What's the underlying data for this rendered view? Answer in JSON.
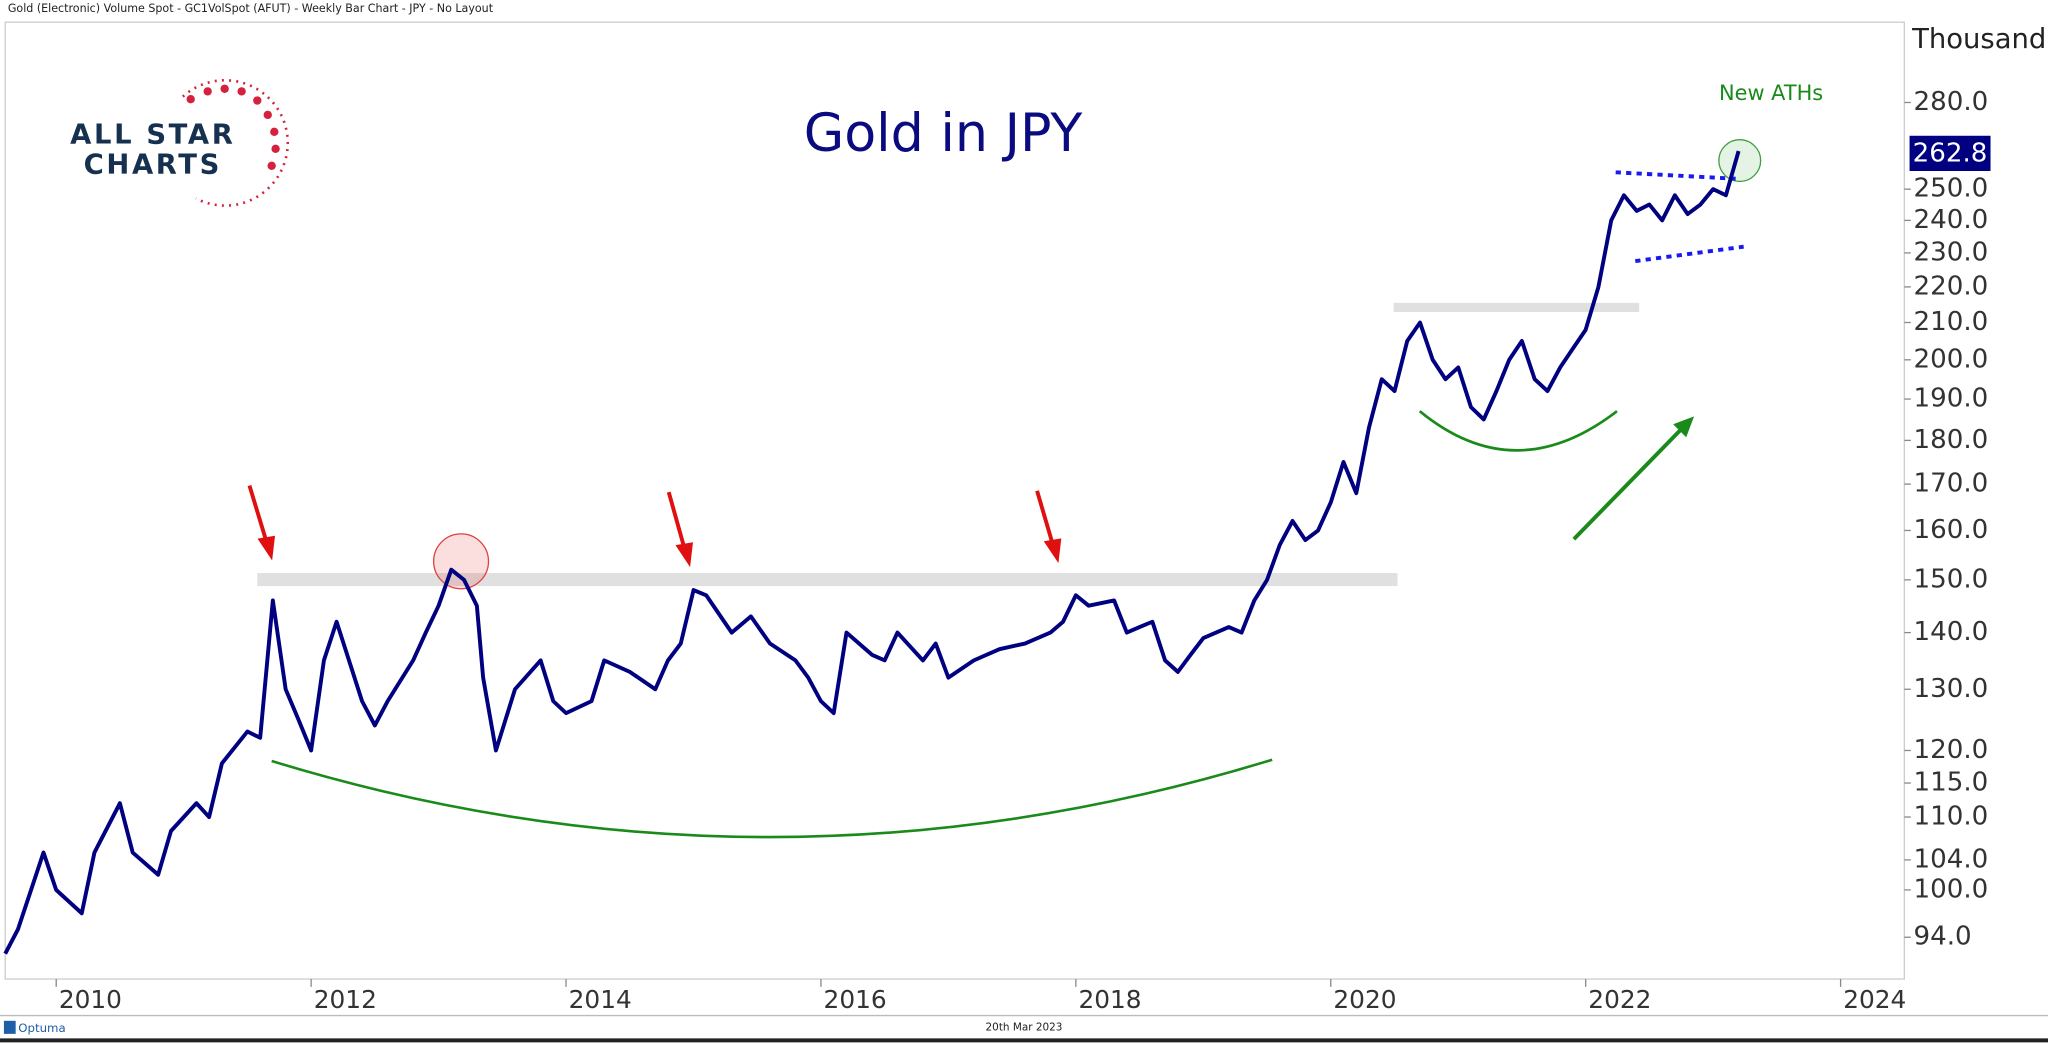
{
  "chart_data": {
    "type": "line",
    "header": "Gold (Electronic) Volume Spot - GC1VolSpot (AFUT) - Weekly Bar Chart - JPY - No Layout",
    "title": "Gold in JPY",
    "logo": [
      "ALL STAR",
      "CHARTS"
    ],
    "annotation": "New ATHs",
    "y_axis_label": "Thousand",
    "date": "20th Mar 2023",
    "brand": "Optuma",
    "log_y": true,
    "color": "#000080",
    "xlim": [
      2009.6,
      2024.5
    ],
    "xticks": [
      2010,
      2012,
      2014,
      2016,
      2018,
      2020,
      2022,
      2024
    ],
    "ylim": [
      89,
      311
    ],
    "yticks": [
      {
        "value": 94,
        "label": "94.0"
      },
      {
        "value": 100,
        "label": "100.0"
      },
      {
        "value": 104,
        "label": "104.0"
      },
      {
        "value": 110,
        "label": "110.0"
      },
      {
        "value": 115,
        "label": "115.0"
      },
      {
        "value": 120,
        "label": "120.0"
      },
      {
        "value": 130,
        "label": "130.0"
      },
      {
        "value": 140,
        "label": "140.0"
      },
      {
        "value": 150,
        "label": "150.0"
      },
      {
        "value": 160,
        "label": "160.0"
      },
      {
        "value": 170,
        "label": "170.0"
      },
      {
        "value": 180,
        "label": "180.0"
      },
      {
        "value": 190,
        "label": "190.0"
      },
      {
        "value": 200,
        "label": "200.0"
      },
      {
        "value": 210,
        "label": "210.0"
      },
      {
        "value": 220,
        "label": "220.0"
      },
      {
        "value": 230,
        "label": "230.0"
      },
      {
        "value": 240,
        "label": "240.0"
      },
      {
        "value": 250,
        "label": "250.0"
      },
      {
        "value": 280,
        "label": "280.0"
      }
    ],
    "x": [
      2009.6,
      2009.7,
      2009.9,
      2010.0,
      2010.2,
      2010.3,
      2010.5,
      2010.6,
      2010.8,
      2010.9,
      2011.1,
      2011.2,
      2011.3,
      2011.5,
      2011.6,
      2011.7,
      2011.8,
      2011.9,
      2012.0,
      2012.1,
      2012.2,
      2012.4,
      2012.5,
      2012.6,
      2012.8,
      2012.9,
      2013.0,
      2013.1,
      2013.2,
      2013.3,
      2013.35,
      2013.45,
      2013.6,
      2013.8,
      2013.9,
      2014.0,
      2014.2,
      2014.3,
      2014.5,
      2014.7,
      2014.8,
      2014.9,
      2015.0,
      2015.1,
      2015.3,
      2015.45,
      2015.6,
      2015.8,
      2015.9,
      2016.0,
      2016.1,
      2016.2,
      2016.4,
      2016.5,
      2016.6,
      2016.8,
      2016.9,
      2017.0,
      2017.2,
      2017.4,
      2017.6,
      2017.8,
      2017.9,
      2018.0,
      2018.1,
      2018.3,
      2018.4,
      2018.5,
      2018.6,
      2018.7,
      2018.8,
      2018.9,
      2019.0,
      2019.2,
      2019.3,
      2019.4,
      2019.5,
      2019.6,
      2019.7,
      2019.8,
      2019.9,
      2020.0,
      2020.1,
      2020.2,
      2020.3,
      2020.4,
      2020.5,
      2020.6,
      2020.7,
      2020.8,
      2020.9,
      2021.0,
      2021.1,
      2021.2,
      2021.3,
      2021.4,
      2021.5,
      2021.6,
      2021.7,
      2021.8,
      2021.9,
      2022.0,
      2022.1,
      2022.2,
      2022.3,
      2022.4,
      2022.5,
      2022.6,
      2022.7,
      2022.8,
      2022.9,
      2023.0,
      2023.1,
      2023.2
    ],
    "values": [
      92,
      95,
      105,
      100,
      97,
      105,
      112,
      105,
      102,
      108,
      112,
      110,
      118,
      123,
      122,
      146,
      130,
      125,
      120,
      135,
      142,
      128,
      124,
      128,
      135,
      140,
      145,
      152,
      150,
      145,
      132,
      120,
      130,
      135,
      128,
      126,
      128,
      135,
      133,
      130,
      135,
      138,
      148,
      147,
      140,
      143,
      138,
      135,
      132,
      128,
      126,
      140,
      136,
      135,
      140,
      135,
      138,
      132,
      135,
      137,
      138,
      140,
      142,
      147,
      145,
      146,
      140,
      141,
      142,
      135,
      133,
      136,
      139,
      141,
      140,
      146,
      150,
      157,
      162,
      158,
      160,
      166,
      175,
      168,
      183,
      195,
      192,
      205,
      210,
      200,
      195,
      198,
      188,
      185,
      192,
      200,
      205,
      195,
      192,
      198,
      203,
      208,
      220,
      240,
      248,
      243,
      245,
      240,
      248,
      242,
      245,
      250,
      248,
      262.8
    ]
  }
}
